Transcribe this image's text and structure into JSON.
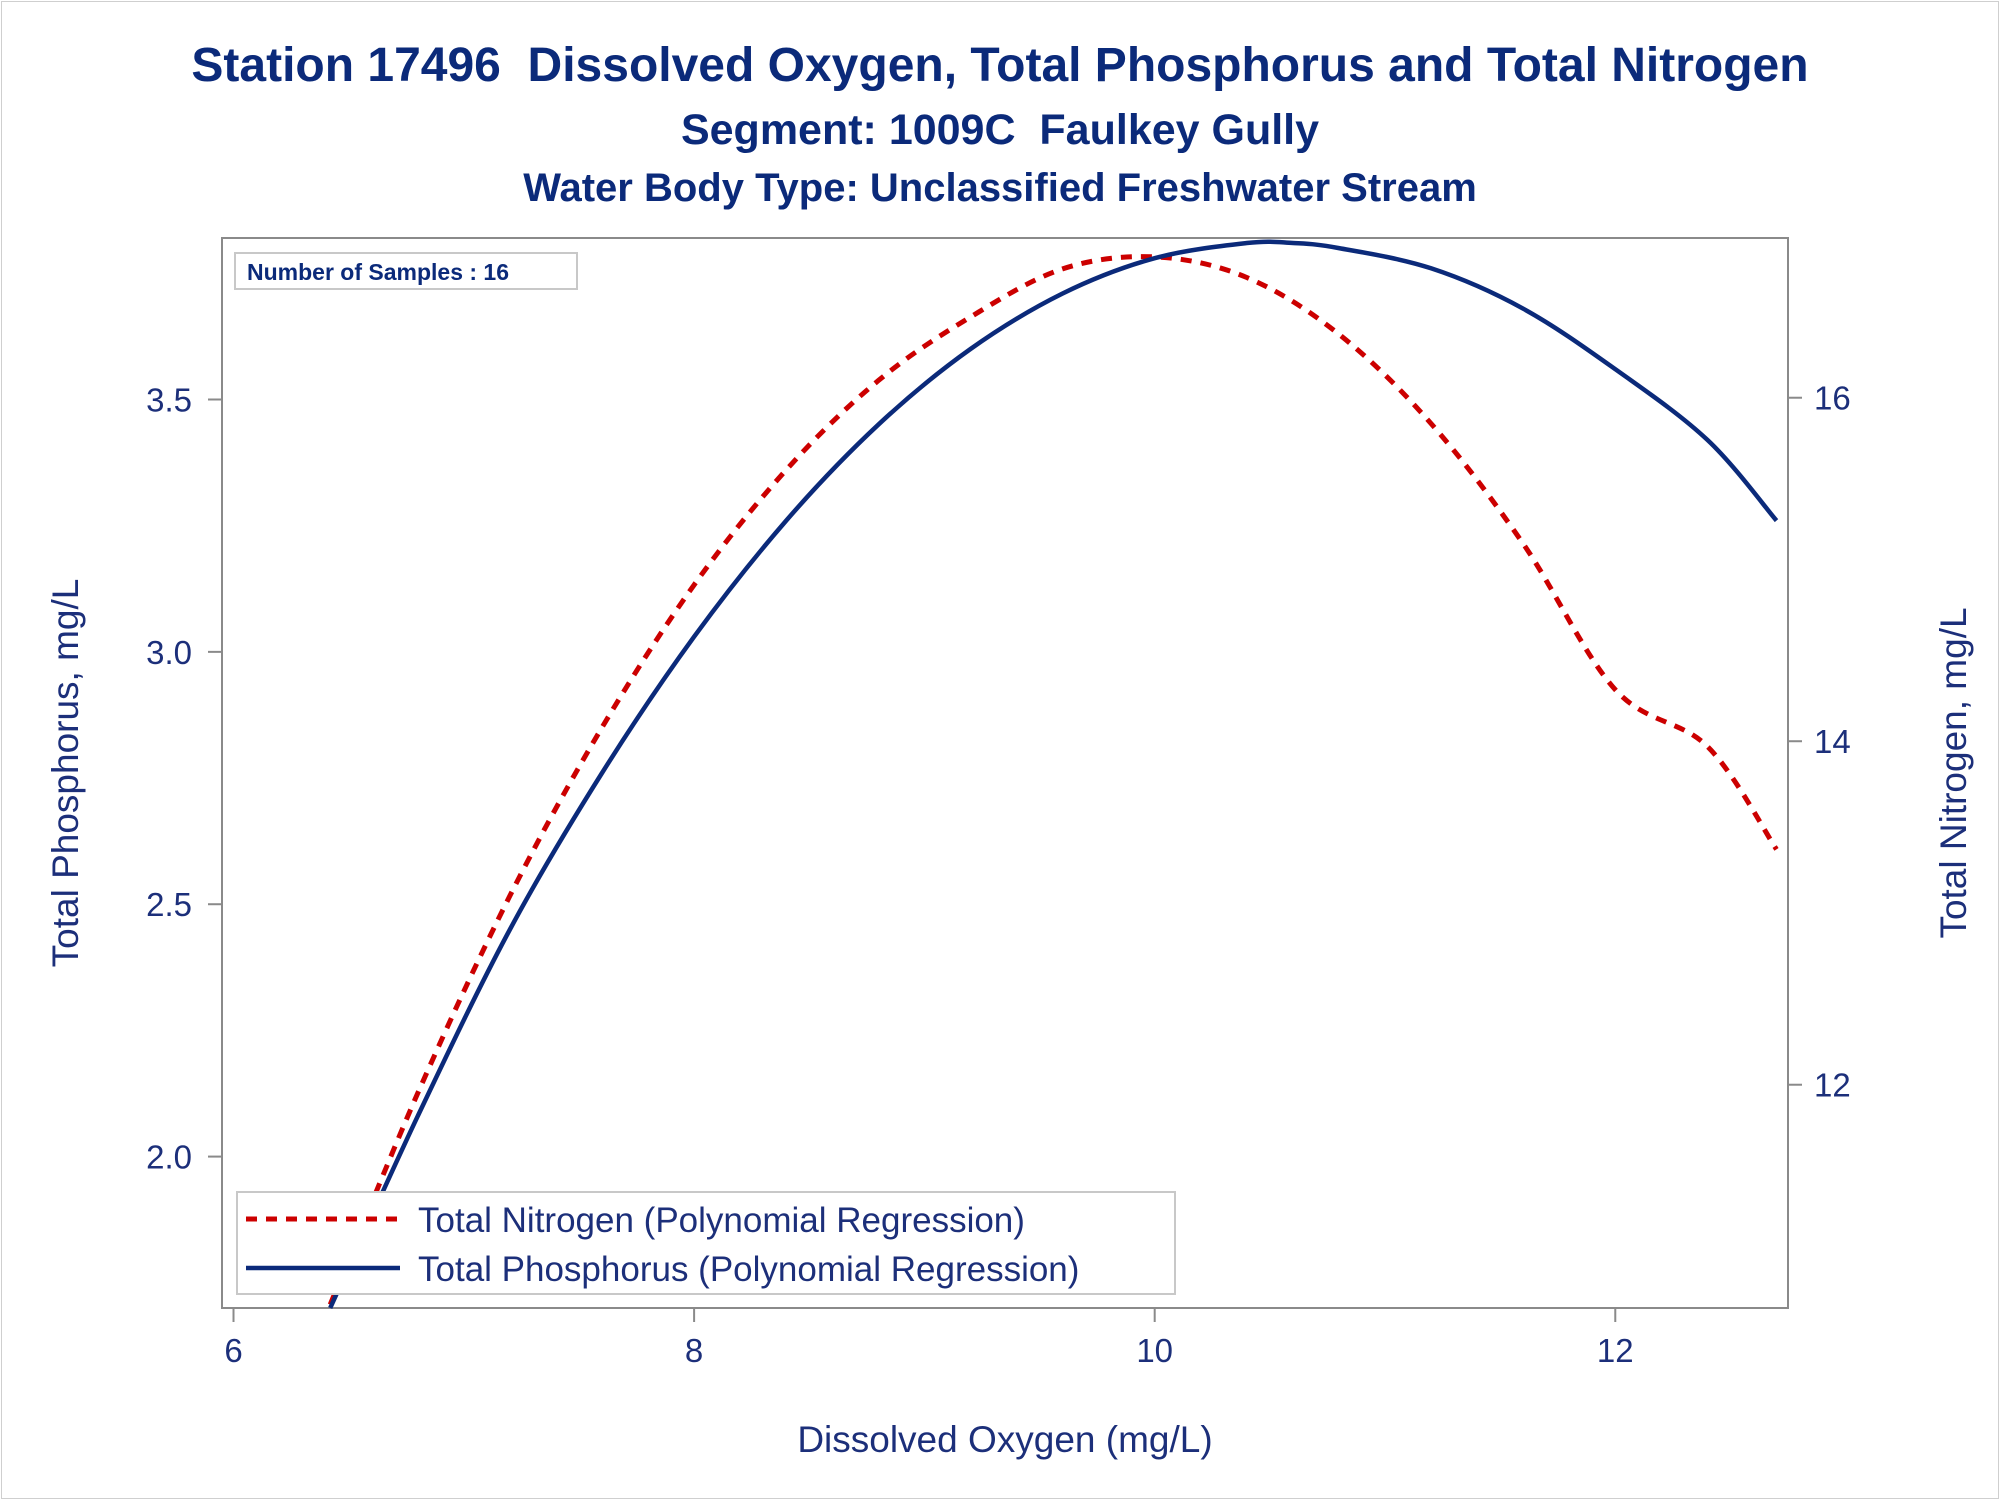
{
  "chart_data": {
    "type": "line",
    "title": "Station 17496  Dissolved Oxygen, Total Phosphorus and Total Nitrogen",
    "subtitle": "Segment: 1009C  Faulkey Gully",
    "subtitle2": "Water Body Type: Unclassified Freshwater Stream",
    "xlabel": "Dissolved Oxygen (mg/L)",
    "ylabel": "Total Phosphorus, mg/L",
    "y2label": "Total Nitrogen, mg/L",
    "xlim": [
      5.95,
      12.75
    ],
    "ylim": [
      1.7,
      3.82
    ],
    "y2lim": [
      10.7,
      16.93
    ],
    "xticks": [
      6,
      8,
      10,
      12
    ],
    "yticks": [
      2.0,
      2.5,
      3.0,
      3.5
    ],
    "y2ticks": [
      12,
      14,
      16
    ],
    "xtick_labels": [
      "6",
      "8",
      "10",
      "12"
    ],
    "ytick_labels": [
      "2.0",
      "2.5",
      "3.0",
      "3.5"
    ],
    "y2tick_labels": [
      "12",
      "14",
      "16"
    ],
    "grid": false,
    "inset_text": "Number of Samples : 16",
    "legend_position": "bottom-left",
    "series": [
      {
        "name": "Total Nitrogen (Polynomial Regression)",
        "axis": "right",
        "color": "#cc0000",
        "style": "dashed",
        "x": [
          6.42,
          6.8,
          7.2,
          7.6,
          8.0,
          8.4,
          8.8,
          9.2,
          9.6,
          10.0,
          10.4,
          10.8,
          11.2,
          11.6,
          12.0,
          12.4,
          12.7
        ],
        "y": [
          10.72,
          11.95,
          13.1,
          14.08,
          14.91,
          15.58,
          16.1,
          16.47,
          16.75,
          16.82,
          16.7,
          16.37,
          15.85,
          15.15,
          14.3,
          13.2,
          13.37
        ]
      },
      {
        "name": "Total Phosphorus (Polynomial Regression)",
        "axis": "left",
        "color": "#0b2a7a",
        "style": "solid",
        "x": [
          6.42,
          6.8,
          7.2,
          7.6,
          8.0,
          8.4,
          8.8,
          9.2,
          9.6,
          10.0,
          10.4,
          10.6,
          10.8,
          11.2,
          11.6,
          12.0,
          12.4,
          12.7
        ],
        "y": [
          1.7,
          2.08,
          2.45,
          2.76,
          3.03,
          3.26,
          3.45,
          3.6,
          3.71,
          3.78,
          3.81,
          3.81,
          3.8,
          3.76,
          3.68,
          3.56,
          3.42,
          3.26
        ]
      }
    ]
  }
}
